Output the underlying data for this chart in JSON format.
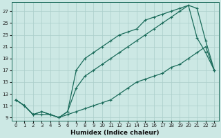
{
  "xlabel": "Humidex (Indice chaleur)",
  "bg_color": "#cce8e4",
  "grid_color": "#aaceca",
  "line_color": "#1a6b5a",
  "xlim": [
    -0.5,
    23.5
  ],
  "ylim": [
    8.5,
    28.5
  ],
  "xticks": [
    0,
    1,
    2,
    3,
    4,
    5,
    6,
    7,
    8,
    9,
    10,
    11,
    12,
    13,
    14,
    15,
    16,
    17,
    18,
    19,
    20,
    21,
    22,
    23
  ],
  "yticks": [
    9,
    11,
    13,
    15,
    17,
    19,
    21,
    23,
    25,
    27
  ],
  "line_top_x": [
    0,
    1,
    2,
    3,
    4,
    5,
    6,
    7,
    8,
    9,
    10,
    11,
    12,
    13,
    14,
    15,
    16,
    17,
    18,
    19,
    20,
    21,
    22,
    23
  ],
  "line_top_y": [
    12,
    11,
    9.5,
    10,
    9.5,
    9,
    10,
    17,
    19,
    20,
    21,
    22,
    23,
    23.5,
    24,
    25.5,
    26,
    26.5,
    27,
    27.5,
    28,
    22.5,
    20,
    17
  ],
  "line_mid_x": [
    0,
    1,
    2,
    3,
    4,
    5,
    6,
    7,
    8,
    9,
    10,
    11,
    12,
    13,
    14,
    15,
    16,
    17,
    18,
    19,
    20,
    21,
    22,
    23
  ],
  "line_mid_y": [
    12,
    11,
    9.5,
    10,
    9.5,
    9,
    10,
    14,
    16,
    17,
    18,
    19,
    20,
    21,
    22,
    23,
    24,
    25,
    26,
    27,
    28,
    27.5,
    22,
    17
  ],
  "line_bot_x": [
    0,
    1,
    2,
    3,
    4,
    5,
    6,
    7,
    8,
    9,
    10,
    11,
    12,
    13,
    14,
    15,
    16,
    17,
    18,
    19,
    20,
    21,
    22,
    23
  ],
  "line_bot_y": [
    12,
    11,
    9.5,
    9.5,
    9.5,
    9,
    9.5,
    10,
    10.5,
    11,
    11.5,
    12,
    13,
    14,
    15,
    15.5,
    16,
    16.5,
    17.5,
    18,
    19,
    20,
    21,
    17
  ]
}
